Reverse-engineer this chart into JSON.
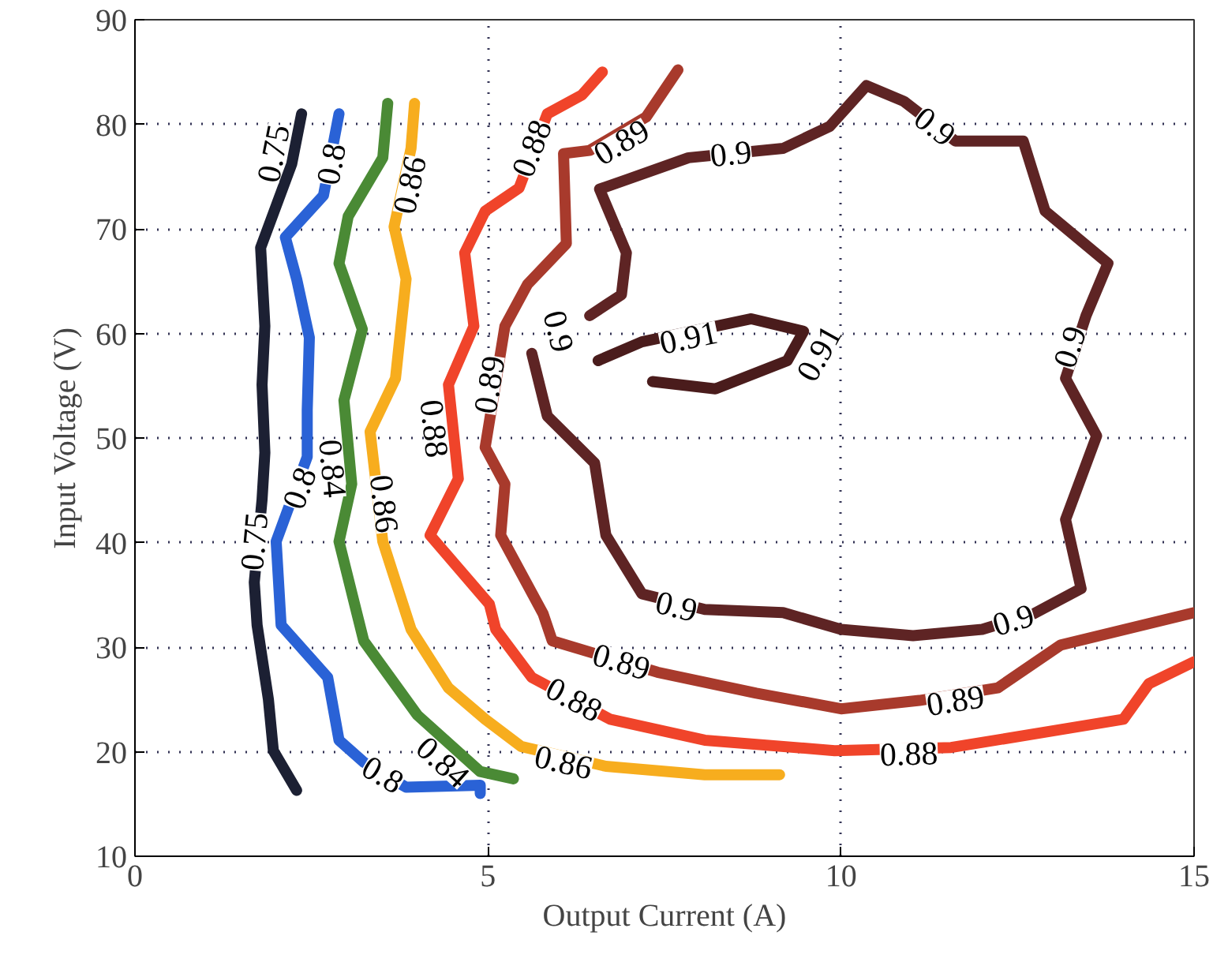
{
  "chart_data": {
    "type": "line",
    "xlabel": "Output Current (A)",
    "ylabel": "Input Voltage (V)",
    "xlim": [
      0,
      15
    ],
    "ylim": [
      10,
      90
    ],
    "xticks": [
      0,
      5,
      10,
      15
    ],
    "yticks": [
      10,
      20,
      30,
      40,
      50,
      60,
      70,
      80,
      90
    ],
    "grid": true,
    "series": [
      {
        "color": "#1c2033",
        "x": [
          2.36,
          2.22,
          1.78,
          1.84,
          1.8,
          1.84,
          1.8,
          1.69,
          1.73,
          1.89,
          1.96,
          2.29
        ],
        "values": [
          81,
          76.2,
          68.2,
          60.7,
          55.1,
          48.6,
          44.1,
          36.2,
          32.1,
          25.0,
          20.1,
          16.3
        ]
      },
      {
        "color": "#2a62d6",
        "x": [
          2.89,
          2.67,
          2.13,
          2.29,
          2.47,
          2.44,
          2.44,
          2.0,
          2.07,
          2.73,
          2.89,
          3.24,
          3.84,
          4.89,
          4.89
        ],
        "values": [
          81,
          73.2,
          69.2,
          65.2,
          59.6,
          52.7,
          48.2,
          40.1,
          32.1,
          27.1,
          21.1,
          19.0,
          16.6,
          16.8,
          16.0
        ]
      },
      {
        "color": "#4a8a35",
        "x": [
          3.58,
          3.51,
          3.02,
          2.89,
          3.22,
          2.96,
          3.07,
          2.89,
          3.24,
          4.0,
          4.89,
          5.36
        ],
        "values": [
          82.0,
          76.8,
          71.2,
          66.7,
          60.4,
          53.6,
          45.6,
          40.1,
          30.6,
          23.5,
          18.1,
          17.4
        ]
      },
      {
        "color": "#f7ad1e",
        "x": [
          3.96,
          3.91,
          3.67,
          3.84,
          3.69,
          3.33,
          3.51,
          3.91,
          4.44,
          4.96,
          5.47,
          6.67,
          8.07,
          9.13
        ],
        "values": [
          82.0,
          77.7,
          70.2,
          65.2,
          55.7,
          50.6,
          40.1,
          31.7,
          26.1,
          23.1,
          20.5,
          18.6,
          17.8,
          17.8
        ]
      },
      {
        "color": "#f0442a",
        "x": [
          6.62,
          6.33,
          5.84,
          5.44,
          4.96,
          4.67,
          4.8,
          4.44,
          4.58,
          4.18,
          5.02,
          5.11,
          5.62,
          6.73,
          8.07,
          9.91,
          11.56,
          14.0,
          14.36,
          15.0
        ],
        "values": [
          85.0,
          82.8,
          81,
          73.9,
          71.7,
          67.7,
          60.7,
          55.1,
          46.1,
          40.7,
          34.1,
          31.7,
          27.1,
          23.1,
          21.1,
          20.1,
          20.4,
          23.1,
          26.5,
          28.6
        ]
      },
      {
        "color": "#a83a2c",
        "x": [
          7.69,
          7.24,
          6.44,
          6.07,
          6.11,
          5.56,
          5.24,
          4.96,
          5.24,
          5.18,
          5.78,
          5.91,
          7.4,
          8.8,
          10.0,
          11.11,
          12.22,
          13.11,
          15.0
        ],
        "values": [
          85.2,
          80.7,
          77.5,
          77.2,
          68.6,
          64.7,
          60.7,
          49.1,
          45.6,
          40.7,
          33.2,
          30.6,
          27.6,
          25.6,
          24.1,
          24.9,
          26.1,
          30.2,
          33.3
        ]
      },
      {
        "color": "#5e2424",
        "x": [
          5.62,
          5.84,
          6.51,
          6.67,
          7.18,
          8.07,
          9.18,
          10.0,
          11.02,
          12.0,
          12.73,
          13.4,
          13.18,
          13.62,
          13.18,
          13.47,
          13.78,
          12.89,
          12.58,
          11.62,
          10.89,
          10.36,
          9.84,
          9.18,
          7.84,
          6.96,
          6.58,
          6.96,
          6.89,
          6.44
        ],
        "values": [
          58.1,
          52.1,
          47.6,
          40.7,
          35.1,
          33.6,
          33.3,
          31.7,
          31.1,
          31.7,
          33.2,
          35.6,
          42.2,
          50.2,
          55.7,
          61.7,
          66.7,
          71.7,
          78.4,
          78.4,
          82.2,
          83.7,
          79.8,
          77.7,
          76.8,
          74.7,
          73.8,
          67.7,
          63.7,
          61.7
        ]
      },
      {
        "color": "#4a1c1c",
        "x": [
          6.56,
          7.18,
          8.73,
          9.47,
          9.24,
          8.22,
          7.33
        ],
        "values": [
          57.4,
          59.2,
          61.4,
          60.2,
          57.4,
          54.7,
          55.4
        ]
      }
    ],
    "annotations": [
      {
        "text": "0.75",
        "x": 1.96,
        "y": 77.2
      },
      {
        "text": "0.75",
        "x": 1.69,
        "y": 40.1
      },
      {
        "text": "0.8",
        "x": 2.78,
        "y": 76.2
      },
      {
        "text": "0.8",
        "x": 2.33,
        "y": 45.2
      },
      {
        "text": "0.8",
        "x": 3.51,
        "y": 17.8
      },
      {
        "text": "0.84",
        "x": 2.8,
        "y": 47.1
      },
      {
        "text": "0.84",
        "x": 4.36,
        "y": 19.0
      },
      {
        "text": "0.86",
        "x": 3.89,
        "y": 74.2
      },
      {
        "text": "0.86",
        "x": 3.53,
        "y": 43.7
      },
      {
        "text": "0.86",
        "x": 6.07,
        "y": 19.0
      },
      {
        "text": "0.88",
        "x": 5.62,
        "y": 77.7
      },
      {
        "text": "0.88",
        "x": 4.24,
        "y": 50.9
      },
      {
        "text": "0.88",
        "x": 6.22,
        "y": 25.0
      },
      {
        "text": "0.88",
        "x": 10.96,
        "y": 19.8
      },
      {
        "text": "0.89",
        "x": 6.89,
        "y": 78.3
      },
      {
        "text": "0.89",
        "x": 5.02,
        "y": 55.1
      },
      {
        "text": "0.89",
        "x": 6.89,
        "y": 28.6
      },
      {
        "text": "0.89",
        "x": 11.62,
        "y": 24.9
      },
      {
        "text": "0.9",
        "x": 6.0,
        "y": 60.2
      },
      {
        "text": "0.9",
        "x": 8.44,
        "y": 77.2
      },
      {
        "text": "0.9",
        "x": 11.33,
        "y": 79.8
      },
      {
        "text": "0.9",
        "x": 13.24,
        "y": 58.7
      },
      {
        "text": "0.9",
        "x": 12.44,
        "y": 32.6
      },
      {
        "text": "0.9",
        "x": 7.67,
        "y": 33.9
      },
      {
        "text": "0.91",
        "x": 7.84,
        "y": 59.6
      },
      {
        "text": "0.91",
        "x": 9.69,
        "y": 58.1
      }
    ]
  }
}
